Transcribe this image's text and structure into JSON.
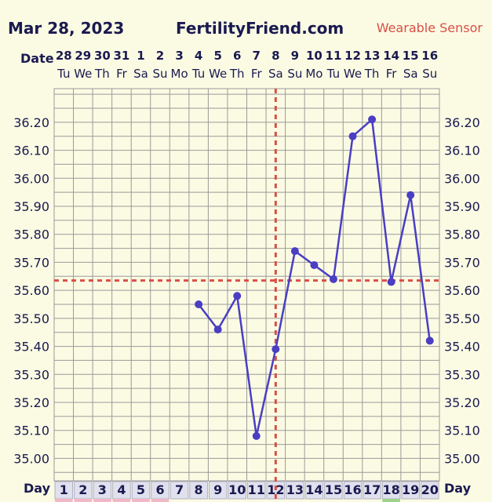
{
  "header": {
    "date": "Mar 28, 2023",
    "site": "FertilityFriend.com",
    "sensor": "Wearable Sensor"
  },
  "chart_data": {
    "type": "line",
    "row_labels": {
      "date": "Date",
      "day": "Day"
    },
    "dates": [
      "28",
      "29",
      "30",
      "31",
      "1",
      "2",
      "3",
      "4",
      "5",
      "6",
      "7",
      "8",
      "9",
      "10",
      "11",
      "12",
      "13",
      "14",
      "15",
      "16"
    ],
    "weekdays": [
      "Tu",
      "We",
      "Th",
      "Fr",
      "Sa",
      "Su",
      "Mo",
      "Tu",
      "We",
      "Th",
      "Fr",
      "Sa",
      "Su",
      "Mo",
      "Tu",
      "We",
      "Th",
      "Fr",
      "Sa",
      "Su"
    ],
    "cycle_days": [
      "1",
      "2",
      "3",
      "4",
      "5",
      "6",
      "7",
      "8",
      "9",
      "10",
      "11",
      "12",
      "13",
      "14",
      "15",
      "16",
      "17",
      "18",
      "19",
      "20"
    ],
    "ylim": [
      34.92,
      36.32
    ],
    "yticks": [
      "35.00",
      "35.10",
      "35.20",
      "35.30",
      "35.40",
      "35.50",
      "35.60",
      "35.70",
      "35.80",
      "35.90",
      "36.00",
      "36.10",
      "36.20"
    ],
    "series": [
      {
        "values": [
          null,
          null,
          null,
          null,
          null,
          null,
          null,
          35.55,
          35.46,
          35.58,
          35.08,
          35.39,
          35.74,
          35.69,
          35.64,
          36.15,
          36.21,
          35.63,
          35.94,
          35.42
        ]
      }
    ],
    "coverline": 35.635,
    "ovulation_day": "12",
    "colors": {
      "line": "#4a3ec3",
      "grid": "#9a9a9a",
      "coverline": "#d94f45",
      "label": "#1a1a50",
      "day_cell": "#e0e0ee",
      "sensor": "#d94f45"
    }
  }
}
